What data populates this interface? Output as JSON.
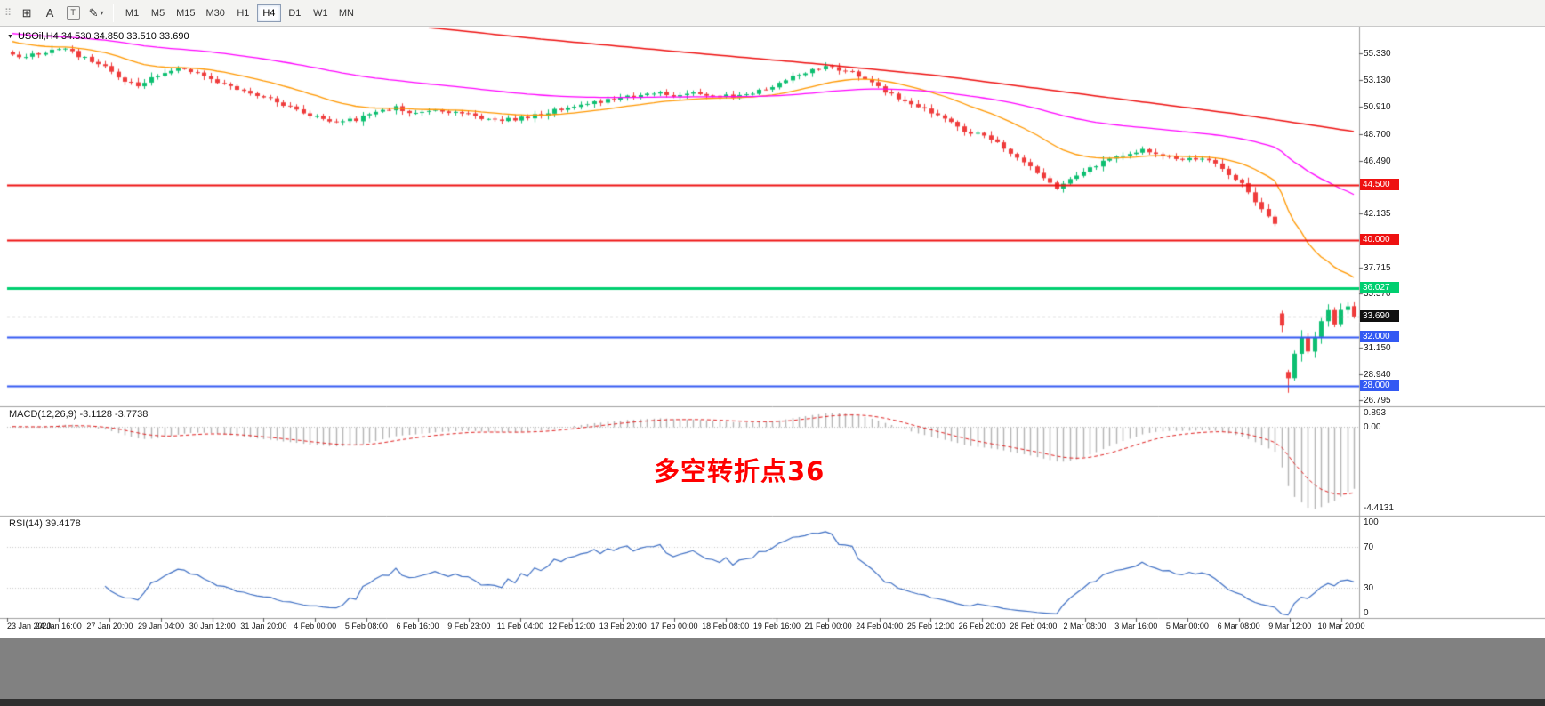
{
  "toolbar": {
    "drag_handle_glyph": "⠿",
    "tools": [
      {
        "name": "grid-icon",
        "glyph": "⊞"
      },
      {
        "name": "text-label-icon",
        "glyph": "A"
      },
      {
        "name": "text-box-icon",
        "glyph": "T",
        "boxed": true
      },
      {
        "name": "pencil-icon",
        "glyph": "✎",
        "caret": "▾"
      }
    ],
    "timeframes": [
      "M1",
      "M5",
      "M15",
      "M30",
      "H1",
      "H4",
      "D1",
      "W1",
      "MN"
    ],
    "selected_timeframe": "H4"
  },
  "chart": {
    "collapse_icon": "▼",
    "title": "USOil,H4 34.530 34.850 33.510 33.690",
    "price_axis": {
      "price_top": 57.45,
      "price_bottom": 26.36,
      "ticks": [
        "55.330",
        "53.130",
        "50.910",
        "48.700",
        "46.490",
        "42.135",
        "37.715",
        "35.570",
        "31.150",
        "28.940",
        "26.795"
      ]
    },
    "levels": [
      {
        "price": 44.5,
        "label": "44.500",
        "color": "#ee1111",
        "width": 2
      },
      {
        "price": 40.0,
        "label": "40.000",
        "color": "#ee1111",
        "width": 2
      },
      {
        "price": 36.027,
        "label": "36.027",
        "color": "#00cf70",
        "width": 3
      },
      {
        "price": 32.0,
        "label": "32.000",
        "color": "#3359f3",
        "width": 2
      },
      {
        "price": 28.0,
        "label": "28.000",
        "color": "#3359f3",
        "width": 2
      }
    ],
    "current_price": {
      "value": 33.69,
      "label": "33.690",
      "badge_color": "#101010"
    },
    "colors": {
      "candle_up": "#0dbf71",
      "candle_down": "#ef3c3c",
      "macd_hist": "#b3b3b3",
      "macd_signal": "#e02222",
      "rsi_line": "#3e6fc4"
    },
    "candles": {
      "count": 204,
      "seed": 12,
      "noise": 0.16,
      "waypoints": [
        [
          0,
          55.3
        ],
        [
          2,
          55.0
        ],
        [
          5,
          55.5
        ],
        [
          8,
          55.7
        ],
        [
          11,
          54.9
        ],
        [
          14,
          54.2
        ],
        [
          17,
          52.9
        ],
        [
          19,
          52.7
        ],
        [
          22,
          53.5
        ],
        [
          25,
          54.2
        ],
        [
          28,
          53.8
        ],
        [
          31,
          53.0
        ],
        [
          34,
          52.4
        ],
        [
          37,
          51.9
        ],
        [
          40,
          51.4
        ],
        [
          43,
          50.7
        ],
        [
          46,
          50.1
        ],
        [
          49,
          49.7
        ],
        [
          52,
          49.9
        ],
        [
          55,
          50.6
        ],
        [
          58,
          50.9
        ],
        [
          61,
          50.4
        ],
        [
          64,
          50.7
        ],
        [
          67,
          50.5
        ],
        [
          70,
          50.1
        ],
        [
          73,
          49.8
        ],
        [
          76,
          49.9
        ],
        [
          79,
          50.2
        ],
        [
          82,
          50.6
        ],
        [
          85,
          51.0
        ],
        [
          88,
          51.3
        ],
        [
          91,
          51.5
        ],
        [
          94,
          51.8
        ],
        [
          97,
          52.1
        ],
        [
          100,
          51.9
        ],
        [
          103,
          52.0
        ],
        [
          106,
          51.9
        ],
        [
          109,
          51.8
        ],
        [
          112,
          52.1
        ],
        [
          115,
          52.6
        ],
        [
          118,
          53.4
        ],
        [
          121,
          54.0
        ],
        [
          123,
          54.3
        ],
        [
          126,
          53.9
        ],
        [
          129,
          53.3
        ],
        [
          132,
          52.1
        ],
        [
          135,
          51.5
        ],
        [
          138,
          50.8
        ],
        [
          141,
          49.9
        ],
        [
          144,
          49.0
        ],
        [
          147,
          48.6
        ],
        [
          150,
          47.6
        ],
        [
          153,
          46.4
        ],
        [
          156,
          45.2
        ],
        [
          158,
          44.2
        ],
        [
          160,
          44.9
        ],
        [
          163,
          45.9
        ],
        [
          166,
          46.6
        ],
        [
          169,
          47.1
        ],
        [
          171,
          47.5
        ],
        [
          174,
          46.9
        ],
        [
          177,
          46.5
        ],
        [
          180,
          46.7
        ],
        [
          183,
          45.9
        ],
        [
          186,
          44.6
        ],
        [
          188,
          43.2
        ],
        [
          190,
          41.9
        ],
        [
          191,
          41.3
        ],
        [
          192,
          32.9
        ],
        [
          193,
          28.6
        ],
        [
          194,
          30.6
        ],
        [
          195,
          31.9
        ],
        [
          196,
          30.8
        ],
        [
          197,
          32.0
        ],
        [
          198,
          33.3
        ],
        [
          199,
          34.2
        ],
        [
          200,
          33.0
        ],
        [
          201,
          34.2
        ],
        [
          202,
          34.5
        ],
        [
          203,
          33.69
        ]
      ],
      "overrides": [
        {
          "i": 193,
          "l": 27.4
        },
        {
          "i": 203,
          "o": 34.53,
          "h": 34.85,
          "l": 33.51,
          "c": 33.69
        }
      ]
    },
    "ma_lines": {
      "orange": {
        "period": 22,
        "seed": 56.4,
        "color": "#ff9800"
      },
      "magenta": {
        "period": 80,
        "seed": 57.0,
        "color": "#ff00ff"
      },
      "red": {
        "color": "#ee1111",
        "waypoints": [
          [
            63,
            57.45
          ],
          [
            80,
            56.5
          ],
          [
            100,
            55.5
          ],
          [
            120,
            54.55
          ],
          [
            140,
            53.5
          ],
          [
            155,
            52.45
          ],
          [
            170,
            51.4
          ],
          [
            185,
            50.35
          ],
          [
            195,
            49.55
          ],
          [
            203,
            48.9
          ]
        ]
      }
    }
  },
  "macd": {
    "label": "MACD(12,26,9) -3.1128 -3.7738",
    "fast": 12,
    "slow": 26,
    "signal": 9,
    "scale_max": "0.893",
    "scale_zero": "0.00",
    "scale_min": "-4.4131"
  },
  "rsi": {
    "label": "RSI(14) 39.4178",
    "period": 14,
    "levels": [
      70,
      30
    ],
    "scale": [
      {
        "label": "100",
        "value": 100
      },
      {
        "label": "70",
        "value": 70
      },
      {
        "label": "30",
        "value": 30
      },
      {
        "label": "0",
        "value": 0
      }
    ]
  },
  "annotation": {
    "text": "多空转折点36",
    "color": "#ff0000"
  },
  "time_axis": {
    "labels": [
      "23 Jan 2020",
      "24 Jan 16:00",
      "27 Jan 20:00",
      "29 Jan 04:00",
      "30 Jan 12:00",
      "31 Jan 20:00",
      "4 Feb 00:00",
      "5 Feb 08:00",
      "6 Feb 16:00",
      "9 Feb 23:00",
      "11 Feb 04:00",
      "12 Feb 12:00",
      "13 Feb 20:00",
      "17 Feb 00:00",
      "18 Feb 08:00",
      "19 Feb 16:00",
      "21 Feb 00:00",
      "24 Feb 04:00",
      "25 Feb 12:00",
      "26 Feb 20:00",
      "28 Feb 04:00",
      "2 Mar 08:00",
      "3 Mar 16:00",
      "5 Mar 00:00",
      "6 Mar 08:00",
      "9 Mar 12:00",
      "10 Mar 20:00"
    ]
  }
}
